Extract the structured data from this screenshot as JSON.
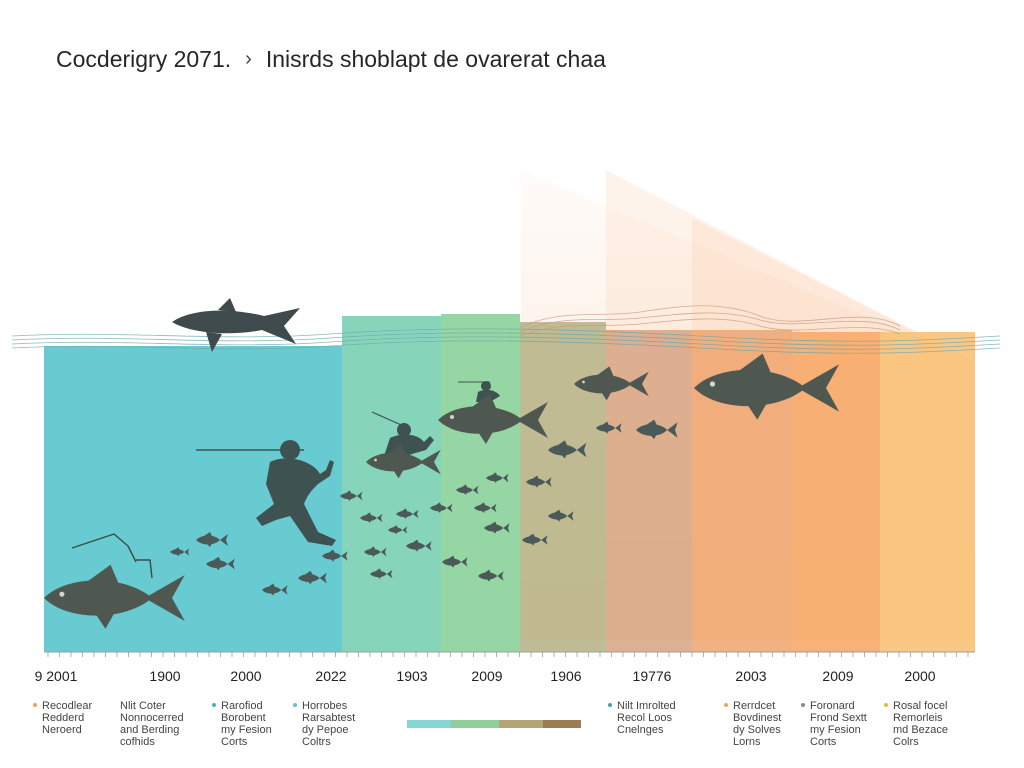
{
  "header": {
    "left_title": "Cocderigry 2071.",
    "separator_icon": "chevron-right-icon",
    "right_title": "Inisrds shoblapt de ovarerat chaa"
  },
  "bands": [
    {
      "color": "#5fc8cf"
    },
    {
      "color": "#7fd3b6"
    },
    {
      "color": "#8fd49f"
    },
    {
      "color": "#b9b58a"
    },
    {
      "color": "#d9a987"
    },
    {
      "color": "#f0a873"
    },
    {
      "color": "#f7aa69"
    },
    {
      "color": "#f8c278"
    }
  ],
  "x_labels": [
    "9 2001",
    "1900",
    "2000",
    "2022",
    "1903",
    "2009",
    "1906",
    "19776",
    "2003",
    "2009",
    "2000"
  ],
  "legend": [
    {
      "text": "Recodlear\nRedderd\nNeroerd",
      "color": "#f0a060"
    },
    {
      "text": "Nlit Coter\nNonnocerred\nand Berding\ncofhids",
      "color": ""
    },
    {
      "text": "Rarofiod\nBorobent\nmy Fesion\nCorts",
      "color": "#4ab0c0"
    },
    {
      "text": "Horrobes\nRarsabtest\ndy Pepoe\nColtrs",
      "color": "#6cc0c8"
    },
    {
      "text": "Nilt Imrolted\nRecol Loos\nCnelnges",
      "color": "#4aa0a8"
    },
    {
      "text": "Rerrdcet\nBovdinest\ndy Solves\nLorns",
      "color": "#f0a060"
    },
    {
      "text": "Foronard\nFrond Sextt\nmy Fesion\nCorts",
      "color": "#8a8a8a"
    },
    {
      "text": "Rosal focel\nRemorleis\nmd Bezace\nColrs",
      "color": "#e8b84a"
    }
  ],
  "legend_bar_colors": [
    "#86d6d3",
    "#8fcf9c",
    "#b3a574",
    "#9d7d54"
  ]
}
